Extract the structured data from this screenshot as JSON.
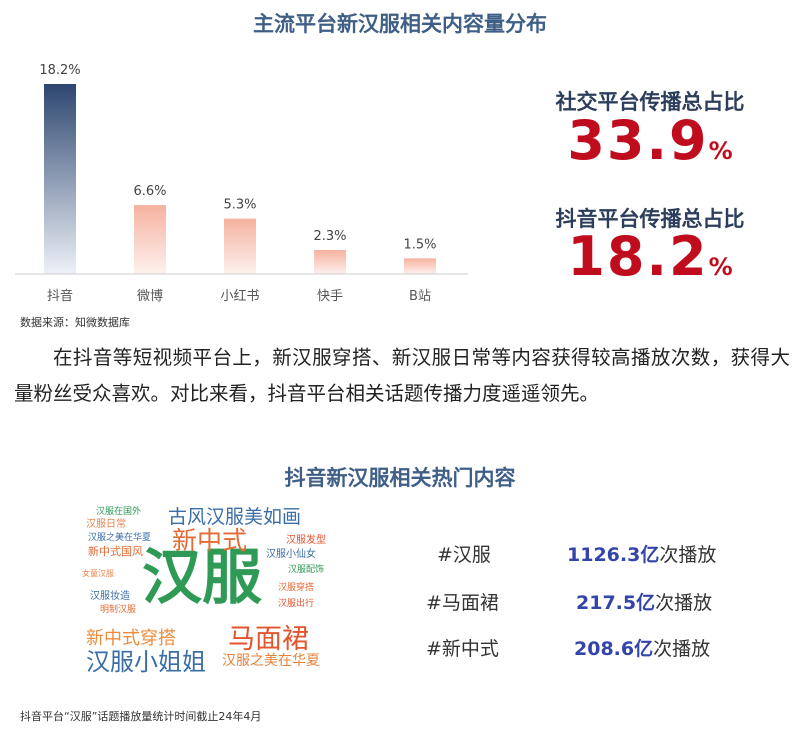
{
  "top_title": "主流平台新汉服相关内容量分布",
  "source_top": "数据来源：知微数据库",
  "chart_data": {
    "type": "bar",
    "title": "主流平台新汉服相关内容量分布",
    "categories": [
      "抖音",
      "微博",
      "小红书",
      "快手",
      "B站"
    ],
    "values": [
      18.2,
      6.6,
      5.3,
      2.3,
      1.5
    ],
    "value_labels": [
      "18.2%",
      "6.6%",
      "5.3%",
      "2.3%",
      "1.5%"
    ],
    "unit": "%",
    "ylim": [
      0,
      18.2
    ],
    "grid": false,
    "colors": {
      "highlight": "#2d4770",
      "normal": "#f6b29f"
    }
  },
  "stats": [
    {
      "label": "社交平台传播总占比",
      "number": "33.9",
      "suffix": "%"
    },
    {
      "label": "抖音平台传播总占比",
      "number": "18.2",
      "suffix": "%"
    }
  ],
  "paragraph": "在抖音等短视频平台上，新汉服穿搭、新汉服日常等内容获得较高播放次数，获得大量粉丝受众喜欢。对比来看，抖音平台相关话题传播力度遥遥领先。",
  "mid_title": "抖音新汉服相关热门内容",
  "wordcloud": [
    {
      "text": "汉服",
      "color": "#2e9a55",
      "size": 60
    },
    {
      "text": "新中式",
      "color": "#e46b34",
      "size": 25
    },
    {
      "text": "古风汉服美如画",
      "color": "#3a6ea5",
      "size": 19
    },
    {
      "text": "马面裙",
      "color": "#e4542d",
      "size": 27
    },
    {
      "text": "汉服小姐姐",
      "color": "#3a6ea5",
      "size": 24
    },
    {
      "text": "新中式穿搭",
      "color": "#f08c3c",
      "size": 18
    },
    {
      "text": "汉服之美在华夏",
      "color": "#e6823a",
      "size": 14
    },
    {
      "text": "汉服日常",
      "color": "#e9854b",
      "size": 10
    },
    {
      "text": "汉服之美在华夏",
      "color": "#3a6ea5",
      "size": 9
    },
    {
      "text": "新中式国风",
      "color": "#e46b34",
      "size": 11
    },
    {
      "text": "汉服在国外",
      "color": "#2e9a55",
      "size": 9
    },
    {
      "text": "汉服发型",
      "color": "#e4542d",
      "size": 10
    },
    {
      "text": "汉服小仙女",
      "color": "#3a6ea5",
      "size": 10
    },
    {
      "text": "汉服配饰",
      "color": "#2e9a55",
      "size": 9
    },
    {
      "text": "汉服穿搭",
      "color": "#e46b34",
      "size": 9
    },
    {
      "text": "汉服出行",
      "color": "#e4542d",
      "size": 9
    },
    {
      "text": "汉服妆造",
      "color": "#3a6ea5",
      "size": 10
    },
    {
      "text": "明制汉服",
      "color": "#e46b34",
      "size": 9
    },
    {
      "text": "女童汉服",
      "color": "#e9854b",
      "size": 8
    }
  ],
  "tags": [
    {
      "tag": "#汉服",
      "count": "1126.3亿",
      "unit": "次播放"
    },
    {
      "tag": "#马面裙",
      "count": "217.5亿",
      "unit": "次播放"
    },
    {
      "tag": "#新中式",
      "count": "208.6亿",
      "unit": "次播放"
    }
  ],
  "source_bottom": "抖音平台“汉服”话题播放量统计时间截止24年4月"
}
